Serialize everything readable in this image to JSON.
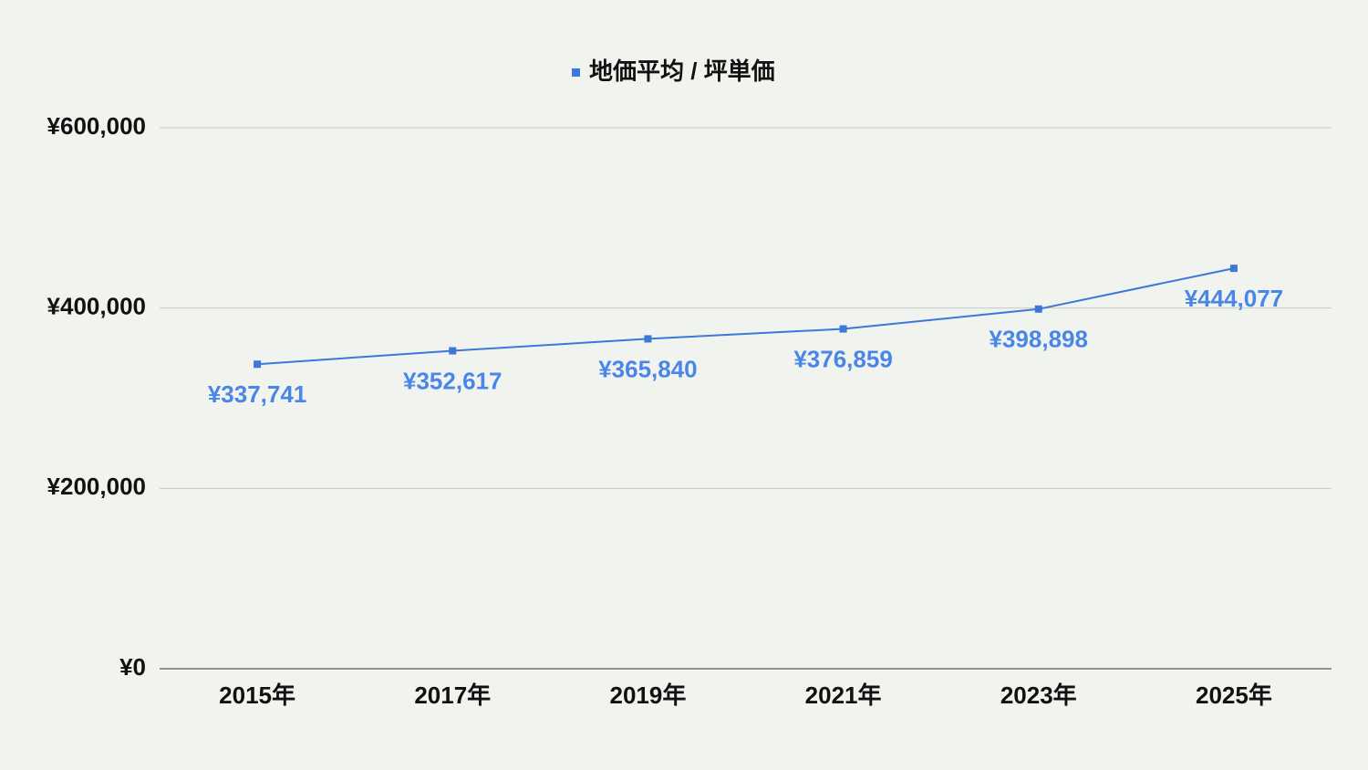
{
  "chart_data": {
    "type": "line",
    "categories": [
      "2015年",
      "2017年",
      "2019年",
      "2021年",
      "2023年",
      "2025年"
    ],
    "series": [
      {
        "name": "地価平均 / 坪単価",
        "color": "#3c78d8",
        "values": [
          337741,
          352617,
          365840,
          376859,
          398898,
          444077
        ],
        "value_labels": [
          "¥337,741",
          "¥352,617",
          "¥365,840",
          "¥376,859",
          "¥398,898",
          "¥444,077"
        ]
      }
    ],
    "ylim": [
      0,
      600000
    ],
    "yticks": [
      {
        "value": 0,
        "label": "¥0"
      },
      {
        "value": 200000,
        "label": "¥200,000"
      },
      {
        "value": 400000,
        "label": "¥400,000"
      },
      {
        "value": 600000,
        "label": "¥600,000"
      }
    ],
    "grid": true,
    "legend": "top"
  }
}
